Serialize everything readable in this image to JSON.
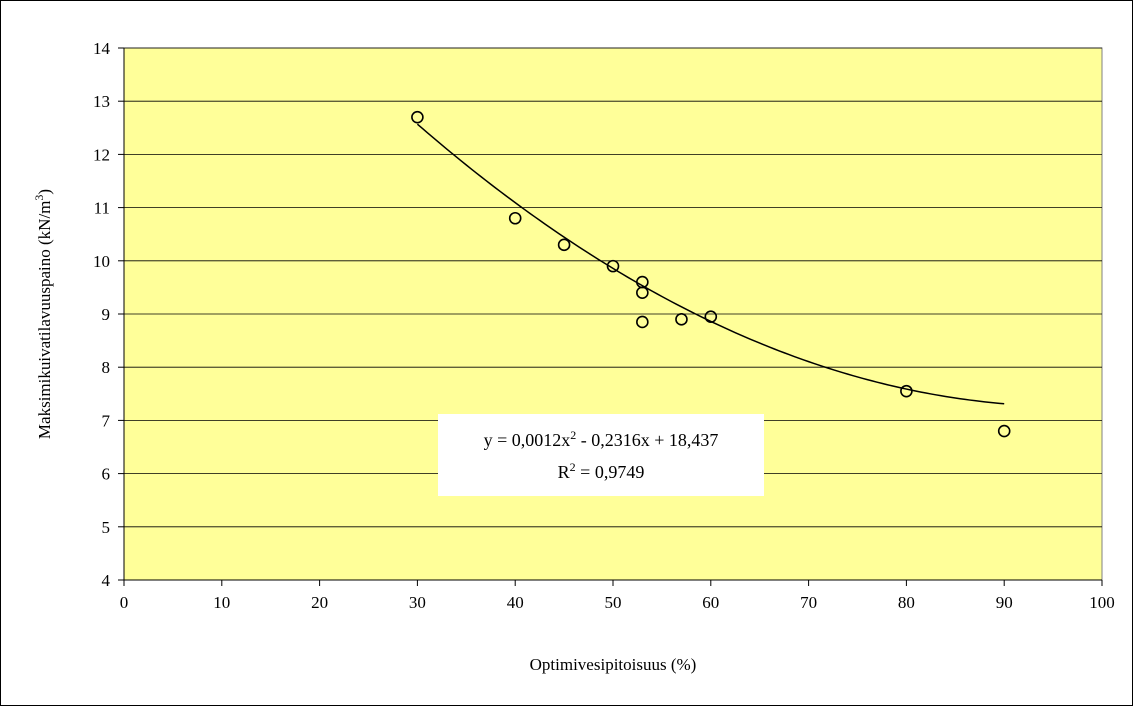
{
  "chart_data": {
    "type": "scatter",
    "title": "",
    "xlabel": "Optimivesipitoisuus (%)",
    "ylabel": {
      "base": "Maksimikuivatilavuuspaino (kN/m",
      "sup": "3",
      "end": ")"
    },
    "xlim": [
      0,
      100
    ],
    "ylim": [
      4,
      14
    ],
    "xticks": [
      0,
      10,
      20,
      30,
      40,
      50,
      60,
      70,
      80,
      90,
      100
    ],
    "yticks": [
      4,
      5,
      6,
      7,
      8,
      9,
      10,
      11,
      12,
      13,
      14
    ],
    "grid": "horizontal",
    "plot_background": "#FFFF99",
    "points": [
      {
        "x": 30,
        "y": 12.7
      },
      {
        "x": 40,
        "y": 10.8
      },
      {
        "x": 45,
        "y": 10.3
      },
      {
        "x": 50,
        "y": 9.9
      },
      {
        "x": 53,
        "y": 9.6
      },
      {
        "x": 53,
        "y": 9.4
      },
      {
        "x": 53,
        "y": 8.85
      },
      {
        "x": 57,
        "y": 8.9
      },
      {
        "x": 60,
        "y": 8.95
      },
      {
        "x": 80,
        "y": 7.55
      },
      {
        "x": 90,
        "y": 6.8
      }
    ],
    "trendline": {
      "type": "polynomial",
      "order": 2,
      "coefficients": [
        0.0012,
        -0.2316,
        18.437
      ],
      "x_range": [
        30,
        90
      ]
    },
    "annotation": {
      "equation_parts": [
        "y = 0,0012x",
        "2",
        " - 0,2316x + 18,437"
      ],
      "r2_parts": [
        "R",
        "2",
        " = 0,9749"
      ]
    }
  }
}
